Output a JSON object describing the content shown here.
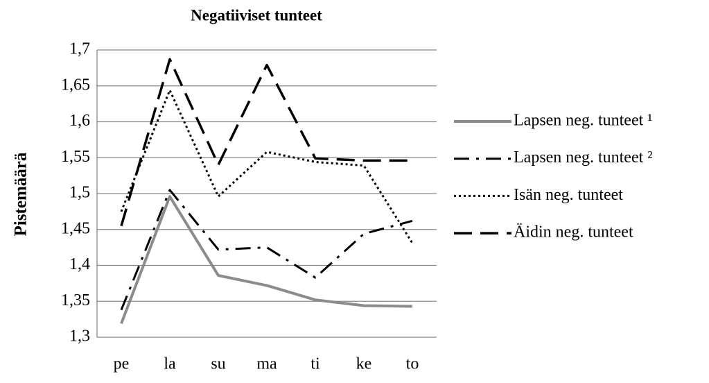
{
  "chart_data": {
    "type": "line",
    "title": "Negatiiviset tunteet",
    "y_label": "Pistemäärä",
    "categories": [
      "pe",
      "la",
      "su",
      "ma",
      "ti",
      "ke",
      "to"
    ],
    "series": [
      {
        "name": "Lapsen neg. tunteet ¹",
        "color": "#8c8c8c",
        "style": "solid",
        "values": [
          1.319,
          1.496,
          1.386,
          1.372,
          1.352,
          1.344,
          1.343
        ]
      },
      {
        "name": "Lapsen neg. tunteet ²",
        "color": "#000000",
        "style": "dashdot",
        "values": [
          1.338,
          1.505,
          1.422,
          1.425,
          1.383,
          1.444,
          1.462
        ]
      },
      {
        "name": "Isän neg. tunteet",
        "color": "#000000",
        "style": "dotted",
        "values": [
          1.475,
          1.644,
          1.496,
          1.558,
          1.544,
          1.539,
          1.431
        ]
      },
      {
        "name": "Äidin neg. tunteet",
        "color": "#000000",
        "style": "dashed",
        "values": [
          1.455,
          1.687,
          1.54,
          1.679,
          1.549,
          1.546,
          1.546
        ]
      }
    ],
    "ylim": [
      1.3,
      1.7
    ],
    "yticks": [
      {
        "value": 1.3,
        "label": "1,3"
      },
      {
        "value": 1.35,
        "label": "1,35"
      },
      {
        "value": 1.4,
        "label": "1,4"
      },
      {
        "value": 1.45,
        "label": "1,45"
      },
      {
        "value": 1.5,
        "label": "1,5"
      },
      {
        "value": 1.55,
        "label": "1,55"
      },
      {
        "value": 1.6,
        "label": "1,6"
      },
      {
        "value": 1.65,
        "label": "1,65"
      },
      {
        "value": 1.7,
        "label": "1,7"
      }
    ],
    "grid": true,
    "legend": "right"
  }
}
